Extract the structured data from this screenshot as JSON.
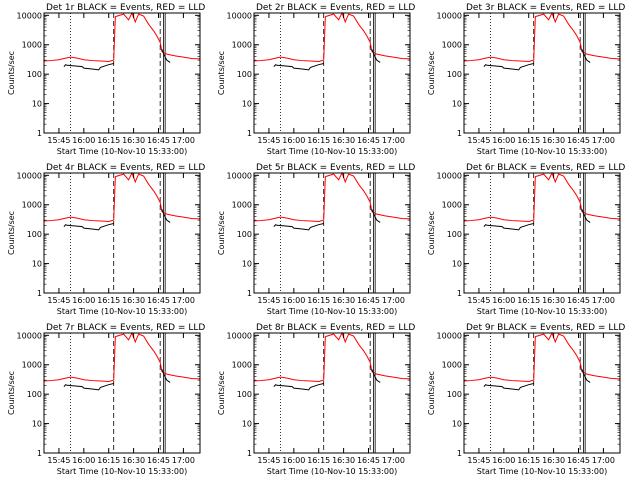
{
  "chart_data": {
    "type": "line",
    "layout": "3x3 grid",
    "y_scale": "log",
    "ylim": [
      1,
      12000
    ],
    "ylabel": "Counts/sec",
    "xlabel": "Start Time (10-Nov-10 15:33:00)",
    "xlim": [
      "15:36",
      "17:10"
    ],
    "x_ticks": [
      "15:45",
      "16:00",
      "16:15",
      "16:30",
      "16:45",
      "17:00"
    ],
    "y_ticks": [
      "1",
      "10",
      "100",
      "1000",
      "10000"
    ],
    "vertical_markers": [
      {
        "time": "15:52",
        "style": "dotted"
      },
      {
        "time": "16:18",
        "style": "dashed"
      },
      {
        "time": "16:46",
        "style": "dashed"
      },
      {
        "time": "16:48",
        "style": "solid"
      },
      {
        "time": "16:49",
        "style": "solid"
      }
    ],
    "colors": {
      "events": "#000000",
      "lld": "#ff0000",
      "axes": "#000000"
    },
    "panels": [
      {
        "title": "Det 1r BLACK = Events, RED = LLD"
      },
      {
        "title": "Det 2r BLACK = Events, RED = LLD"
      },
      {
        "title": "Det 3r BLACK = Events, RED = LLD"
      },
      {
        "title": "Det 4r BLACK = Events, RED = LLD"
      },
      {
        "title": "Det 5r BLACK = Events, RED = LLD"
      },
      {
        "title": "Det 6r BLACK = Events, RED = LLD"
      },
      {
        "title": "Det 7r BLACK = Events, RED = LLD"
      },
      {
        "title": "Det 8r BLACK = Events, RED = LLD"
      },
      {
        "title": "Det 9r BLACK = Events, RED = LLD"
      }
    ],
    "series": [
      {
        "name": "LLD",
        "x": [
          "15:36",
          "15:40",
          "15:45",
          "15:48",
          "15:52",
          "15:56",
          "16:00",
          "16:05",
          "16:10",
          "16:15",
          "16:18",
          "16:19",
          "16:24",
          "16:27",
          "16:29",
          "16:31",
          "16:33",
          "16:36",
          "16:39",
          "16:42",
          "16:44",
          "16:46",
          "16:47",
          "16:50",
          "16:55",
          "17:00",
          "17:05",
          "17:10"
        ],
        "values": [
          280,
          290,
          310,
          340,
          380,
          350,
          310,
          290,
          280,
          270,
          300,
          9000,
          11000,
          7000,
          12000,
          6000,
          11000,
          9500,
          5000,
          3000,
          2000,
          1200,
          600,
          480,
          420,
          380,
          340,
          330
        ]
      },
      {
        "name": "Events",
        "segments": [
          {
            "x": [
              "15:48",
              "15:49",
              "15:50",
              "15:55",
              "15:59",
              "16:00",
              "16:05",
              "16:09",
              "16:10",
              "16:15",
              "16:18"
            ],
            "values": [
              180,
              210,
              200,
              190,
              180,
              160,
              150,
              140,
              170,
              210,
              230
            ]
          },
          {
            "x": [
              "16:47",
              "16:48",
              "16:49",
              "16:50",
              "16:52"
            ],
            "values": [
              700,
              500,
              380,
              300,
              250
            ]
          }
        ]
      }
    ]
  }
}
